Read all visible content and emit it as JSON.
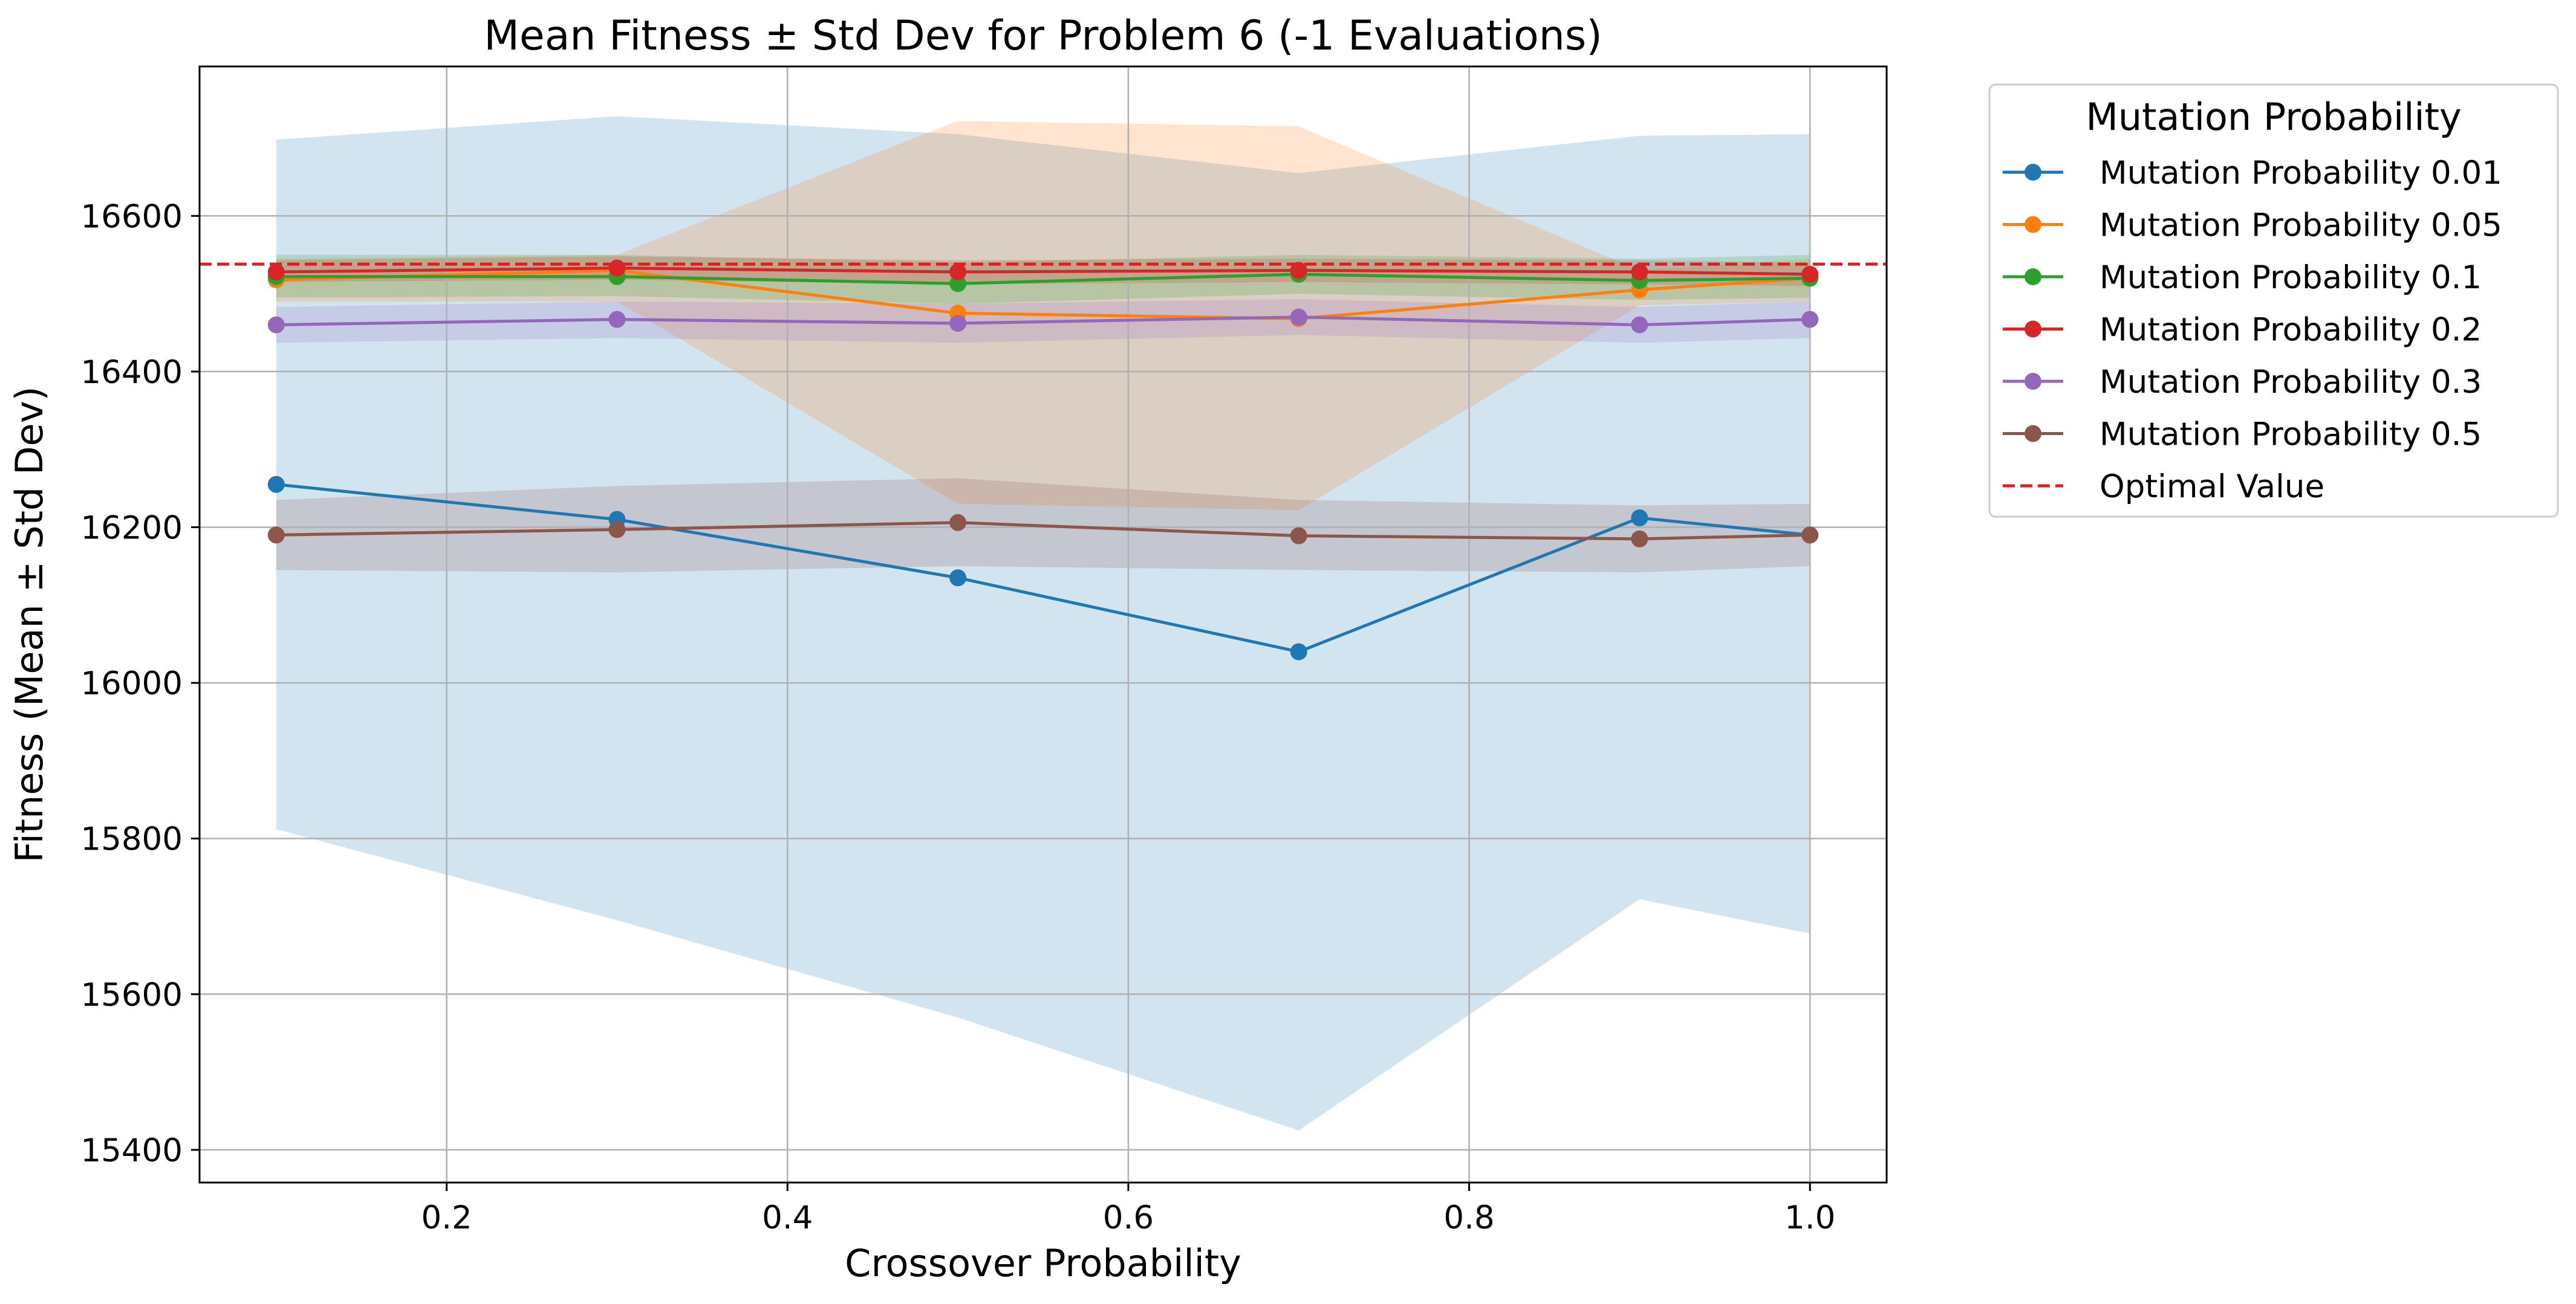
{
  "chart_data": {
    "type": "line",
    "title": "Mean Fitness ± Std Dev for Problem 6 (-1 Evaluations)",
    "xlabel": "Crossover Probability",
    "ylabel": "Fitness (Mean ± Std Dev)",
    "xlim": [
      0.055,
      1.045
    ],
    "ylim": [
      15358,
      16792
    ],
    "x_ticks": [
      0.2,
      0.4,
      0.6,
      0.8,
      1.0
    ],
    "x_tick_labels": [
      "0.2",
      "0.4",
      "0.6",
      "0.8",
      "1.0"
    ],
    "y_ticks": [
      15400,
      15600,
      15800,
      16000,
      16200,
      16400,
      16600
    ],
    "y_tick_labels": [
      "15400",
      "15600",
      "15800",
      "16000",
      "16200",
      "16400",
      "16600"
    ],
    "grid": true,
    "legend": {
      "title": "Mutation Probability",
      "placement": "outside-upper-right",
      "optimal_label": "Optimal Value"
    },
    "x": [
      0.1,
      0.3,
      0.5,
      0.7,
      0.9,
      1.0
    ],
    "series": [
      {
        "name": "Mutation Probability 0.01",
        "color": "#1f77b4",
        "values": [
          16255,
          16210,
          16135,
          16040,
          16212,
          16190
        ],
        "lower": [
          15812,
          15695,
          15570,
          15425,
          15722,
          15678
        ],
        "upper": [
          16698,
          16728,
          16705,
          16655,
          16703,
          16705
        ]
      },
      {
        "name": "Mutation Probability 0.05",
        "color": "#ff7f0e",
        "values": [
          16518,
          16530,
          16475,
          16468,
          16505,
          16520
        ],
        "lower": [
          16490,
          16490,
          16230,
          16222,
          16485,
          16490
        ],
        "upper": [
          16545,
          16550,
          16722,
          16715,
          16530,
          16545
        ]
      },
      {
        "name": "Mutation Probability 0.1",
        "color": "#2ca02c",
        "values": [
          16522,
          16522,
          16513,
          16525,
          16517,
          16520
        ],
        "lower": [
          16495,
          16497,
          16487,
          16500,
          16492,
          16495
        ],
        "upper": [
          16550,
          16550,
          16540,
          16550,
          16545,
          16550
        ]
      },
      {
        "name": "Mutation Probability 0.2",
        "color": "#d62728",
        "values": [
          16528,
          16533,
          16528,
          16530,
          16528,
          16525
        ],
        "lower": [
          16515,
          16518,
          16512,
          16515,
          16512,
          16510
        ],
        "upper": [
          16543,
          16548,
          16543,
          16545,
          16543,
          16540
        ]
      },
      {
        "name": "Mutation Probability 0.3",
        "color": "#9467bd",
        "values": [
          16460,
          16467,
          16462,
          16470,
          16460,
          16467
        ],
        "lower": [
          16437,
          16443,
          16437,
          16447,
          16437,
          16443
        ],
        "upper": [
          16483,
          16490,
          16487,
          16493,
          16483,
          16490
        ]
      },
      {
        "name": "Mutation Probability 0.5",
        "color": "#8c564b",
        "values": [
          16190,
          16197,
          16206,
          16189,
          16185,
          16190
        ],
        "lower": [
          16145,
          16142,
          16150,
          16145,
          16142,
          16150
        ],
        "upper": [
          16235,
          16253,
          16263,
          16235,
          16228,
          16230
        ]
      }
    ],
    "optimal_value": 16538,
    "optimal_color": "#e41a1c"
  }
}
